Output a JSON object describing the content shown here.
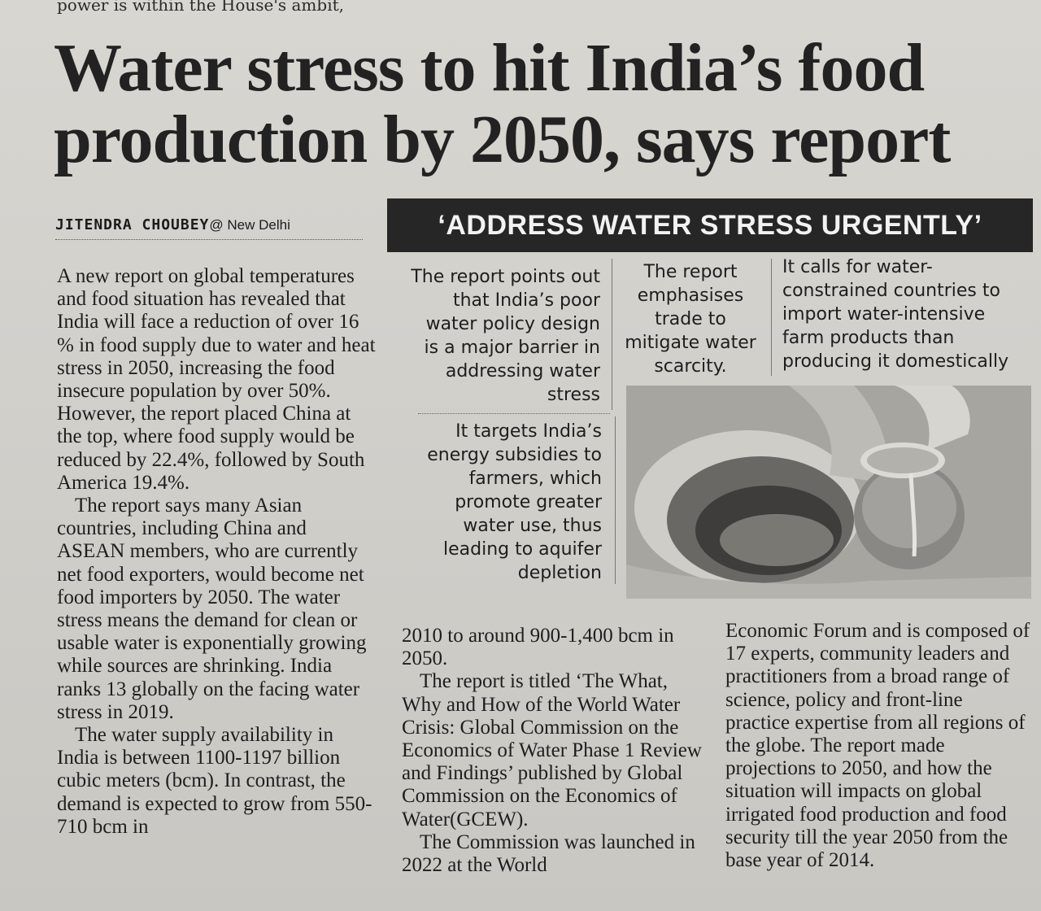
{
  "page": {
    "top_fragment": "power is within the House's ambit,"
  },
  "article": {
    "headline_line1": "Water stress to hit India’s food",
    "headline_line2": "production by 2050, says report",
    "byline_author": "JITENDRA CHOUBEY",
    "byline_location": "@ New Delhi",
    "col1_p1": "A new report on global temperatures and food situation has revealed that India will face a reduction of over 16 % in food supply due to water and heat stress in 2050, increasing the food insecure population by over 50%. However, the report placed China at the top, where food supply would be reduced by 22.4%, followed by South America 19.4%.",
    "col1_p2": "The report says many Asian countries, including China and ASEAN members, who are currently net food exporters, would become net food importers by 2050. The water stress means the demand for clean or usable water is exponentially growing while sources are shrinking. India ranks 13 globally on the facing water stress in 2019.",
    "col1_p3": "The water supply availability in India is between 1100-1197 billion cubic meters (bcm). In contrast, the demand is expected to grow from 550-710 bcm in",
    "col2_p1": "2010 to around 900-1,400 bcm in 2050.",
    "col2_p2": "The report is titled ‘The What, Why and How of the World Water Crisis: Global Commission on the Economics of Water Phase 1 Review and Findings’ published by Global Commission on the Economics of Water(GCEW).",
    "col2_p3": "The Commission was launched in 2022 at the World",
    "col3_p1": "Economic Forum and is composed of 17 experts, community leaders and practitioners from a broad range of science, policy and front-line practice expertise from all regions of the globe. The report made projections to 2050, and how the situation will impacts on global irrigated food production and food security till the year 2050 from the base year of 2014."
  },
  "box": {
    "title": "‘ADDRESS WATER STRESS URGENTLY’",
    "point1": "The report points out that India’s poor water policy design is a major barrier in addressing water stress",
    "point2": "The report emphasises trade to mitigate water scarcity.",
    "point3": "It calls for water-constrained countries to import water-intensive farm products than producing it domestically",
    "point4": "It targets India’s energy subsidies to farmers, which promote greater water use, thus leading to aquifer depletion"
  }
}
